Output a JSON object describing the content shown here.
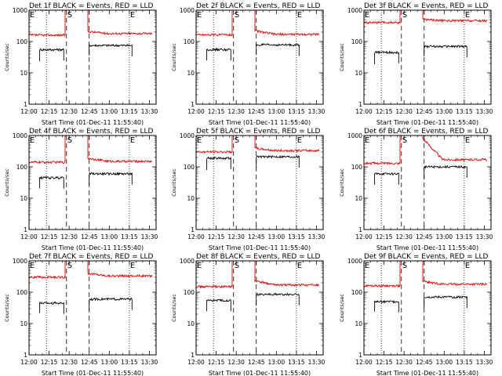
{
  "layout": {
    "rows": 3,
    "cols": 3
  },
  "colors": {
    "events": "#000000",
    "lld": "#dd0000",
    "axis": "#000000"
  },
  "chart_data": [
    {
      "type": "line",
      "title": "Det 1f BLACK = Events, RED = LLD",
      "xlabel": "Start Time (01-Dec-11 11:55:40)",
      "ylabel": "Counts/sec",
      "xlim": [
        "12:00",
        "13:35"
      ],
      "ylim": [
        1,
        1000
      ],
      "yscale": "log",
      "xticks": [
        "12:00",
        "12:15",
        "12:30",
        "12:45",
        "13:00",
        "13:15",
        "13:30"
      ],
      "yticks": [
        "1",
        "10",
        "100",
        "1000"
      ],
      "grid": false,
      "markers": [
        {
          "label": "E",
          "time": "12:00",
          "style": "dotted"
        },
        {
          "label": "",
          "time": "12:13",
          "style": "dotted"
        },
        {
          "label": "S",
          "time": "12:28",
          "style": "dashed"
        },
        {
          "label": "",
          "time": "12:45",
          "style": "dashed"
        },
        {
          "label": "E",
          "time": "13:15",
          "style": "dotted"
        }
      ],
      "series": [
        {
          "name": "LLD",
          "segments": [
            {
              "from": "12:00",
              "to": "12:27",
              "level": 160
            },
            {
              "from": "12:27",
              "to": "12:44",
              "level": 1000
            },
            {
              "from": "12:44",
              "to": "13:32",
              "level": 210,
              "decay_to": 180
            }
          ]
        },
        {
          "name": "Events",
          "segments": [
            {
              "from": "12:08",
              "to": "12:26",
              "level": 55
            },
            {
              "from": "12:45",
              "to": "13:17",
              "level": 75
            }
          ]
        }
      ]
    },
    {
      "type": "line",
      "title": "Det 2f BLACK = Events, RED = LLD",
      "xlabel": "Start Time (01-Dec-11 11:55:40)",
      "ylabel": "Counts/sec",
      "xlim": [
        "12:00",
        "13:35"
      ],
      "ylim": [
        1,
        1000
      ],
      "yscale": "log",
      "xticks": [
        "12:00",
        "12:15",
        "12:30",
        "12:45",
        "13:00",
        "13:15",
        "13:30"
      ],
      "yticks": [
        "1",
        "10",
        "100",
        "1000"
      ],
      "grid": false,
      "markers": [
        {
          "label": "E",
          "time": "12:00",
          "style": "dotted"
        },
        {
          "label": "",
          "time": "12:13",
          "style": "dotted"
        },
        {
          "label": "S",
          "time": "12:28",
          "style": "dashed"
        },
        {
          "label": "",
          "time": "12:45",
          "style": "dashed"
        },
        {
          "label": "E",
          "time": "13:15",
          "style": "dotted"
        }
      ],
      "series": [
        {
          "name": "LLD",
          "segments": [
            {
              "from": "12:00",
              "to": "12:27",
              "level": 165
            },
            {
              "from": "12:27",
              "to": "12:44",
              "level": 1000
            },
            {
              "from": "12:44",
              "to": "13:32",
              "level": 220,
              "decay_to": 170
            }
          ]
        },
        {
          "name": "Events",
          "segments": [
            {
              "from": "12:08",
              "to": "12:26",
              "level": 55
            },
            {
              "from": "12:45",
              "to": "13:17",
              "level": 78
            }
          ]
        }
      ]
    },
    {
      "type": "line",
      "title": "Det 3f BLACK = Events, RED = LLD",
      "xlabel": "Start Time (01-Dec-11 11:55:40)",
      "ylabel": "Counts/sec",
      "xlim": [
        "12:00",
        "13:35"
      ],
      "ylim": [
        1,
        1000
      ],
      "yscale": "log",
      "xticks": [
        "12:00",
        "12:15",
        "12:30",
        "12:45",
        "13:00",
        "13:15",
        "13:30"
      ],
      "yticks": [
        "1",
        "10",
        "100",
        "1000"
      ],
      "grid": false,
      "markers": [
        {
          "label": "E",
          "time": "12:00",
          "style": "dotted"
        },
        {
          "label": "",
          "time": "12:13",
          "style": "dotted"
        },
        {
          "label": "S",
          "time": "12:28",
          "style": "dashed"
        },
        {
          "label": "",
          "time": "12:45",
          "style": "dashed"
        },
        {
          "label": "E",
          "time": "13:15",
          "style": "dotted"
        }
      ],
      "series": [
        {
          "name": "LLD",
          "segments": [
            {
              "from": "12:00",
              "to": "12:27",
              "level": 400
            },
            {
              "from": "12:27",
              "to": "12:44",
              "level": 1000
            },
            {
              "from": "12:44",
              "to": "13:32",
              "level": 520,
              "decay_to": 460
            }
          ]
        },
        {
          "name": "Events",
          "segments": [
            {
              "from": "12:08",
              "to": "12:26",
              "level": 45
            },
            {
              "from": "12:45",
              "to": "13:17",
              "level": 70
            }
          ]
        }
      ]
    },
    {
      "type": "line",
      "title": "Det 4f BLACK = Events, RED = LLD",
      "xlabel": "Start Time (01-Dec-11 11:55:40)",
      "ylabel": "Counts/sec",
      "xlim": [
        "12:00",
        "13:35"
      ],
      "ylim": [
        1,
        1000
      ],
      "yscale": "log",
      "xticks": [
        "12:00",
        "12:15",
        "12:30",
        "12:45",
        "13:00",
        "13:15",
        "13:30"
      ],
      "yticks": [
        "1",
        "10",
        "100",
        "1000"
      ],
      "grid": false,
      "markers": [
        {
          "label": "E",
          "time": "12:00",
          "style": "dotted"
        },
        {
          "label": "",
          "time": "12:13",
          "style": "dotted"
        },
        {
          "label": "S",
          "time": "12:28",
          "style": "dashed"
        },
        {
          "label": "",
          "time": "12:45",
          "style": "dashed"
        },
        {
          "label": "E",
          "time": "13:15",
          "style": "dotted"
        }
      ],
      "series": [
        {
          "name": "LLD",
          "segments": [
            {
              "from": "12:00",
              "to": "12:27",
              "level": 140
            },
            {
              "from": "12:27",
              "to": "12:44",
              "level": 1000
            },
            {
              "from": "12:44",
              "to": "13:32",
              "level": 190,
              "decay_to": 150
            }
          ]
        },
        {
          "name": "Events",
          "segments": [
            {
              "from": "12:08",
              "to": "12:26",
              "level": 45
            },
            {
              "from": "12:45",
              "to": "13:17",
              "level": 60
            }
          ]
        }
      ]
    },
    {
      "type": "line",
      "title": "Det 5f BLACK = Events, RED = LLD",
      "xlabel": "Start Time (01-Dec-11 11:55:40)",
      "ylabel": "Counts/sec",
      "xlim": [
        "12:00",
        "13:35"
      ],
      "ylim": [
        1,
        1000
      ],
      "yscale": "log",
      "xticks": [
        "12:00",
        "12:15",
        "12:30",
        "12:45",
        "13:00",
        "13:15",
        "13:30"
      ],
      "yticks": [
        "1",
        "10",
        "100",
        "1000"
      ],
      "grid": false,
      "markers": [
        {
          "label": "E",
          "time": "12:00",
          "style": "dotted"
        },
        {
          "label": "",
          "time": "12:13",
          "style": "dotted"
        },
        {
          "label": "S",
          "time": "12:28",
          "style": "dashed"
        },
        {
          "label": "",
          "time": "12:45",
          "style": "dashed"
        },
        {
          "label": "E",
          "time": "13:15",
          "style": "dotted"
        }
      ],
      "series": [
        {
          "name": "LLD",
          "segments": [
            {
              "from": "12:00",
              "to": "12:27",
              "level": 300
            },
            {
              "from": "12:27",
              "to": "12:44",
              "level": 1000
            },
            {
              "from": "12:44",
              "to": "13:32",
              "level": 390,
              "decay_to": 330
            }
          ]
        },
        {
          "name": "Events",
          "segments": [
            {
              "from": "12:08",
              "to": "12:26",
              "level": 190
            },
            {
              "from": "12:45",
              "to": "13:17",
              "level": 210
            }
          ]
        }
      ]
    },
    {
      "type": "line",
      "title": "Det 6f BLACK = Events, RED = LLD",
      "xlabel": "Start Time (01-Dec-11 11:55:40)",
      "ylabel": "Counts/sec",
      "xlim": [
        "12:00",
        "13:35"
      ],
      "ylim": [
        1,
        1000
      ],
      "yscale": "log",
      "xticks": [
        "12:00",
        "12:15",
        "12:30",
        "12:45",
        "13:00",
        "13:15",
        "13:30"
      ],
      "yticks": [
        "1",
        "10",
        "100",
        "1000"
      ],
      "grid": false,
      "markers": [
        {
          "label": "E",
          "time": "12:00",
          "style": "dotted"
        },
        {
          "label": "",
          "time": "12:13",
          "style": "dotted"
        },
        {
          "label": "S",
          "time": "12:28",
          "style": "dashed"
        },
        {
          "label": "",
          "time": "12:45",
          "style": "dashed"
        },
        {
          "label": "E",
          "time": "13:15",
          "style": "dotted"
        }
      ],
      "series": [
        {
          "name": "LLD",
          "segments": [
            {
              "from": "12:00",
              "to": "12:27",
              "level": 130
            },
            {
              "from": "12:27",
              "to": "12:44",
              "level": 1000
            },
            {
              "from": "12:44",
              "to": "13:32",
              "level": 800,
              "decay_to": 170
            }
          ]
        },
        {
          "name": "Events",
          "segments": [
            {
              "from": "12:08",
              "to": "12:26",
              "level": 60
            },
            {
              "from": "12:45",
              "to": "13:17",
              "level": 100
            }
          ]
        }
      ]
    },
    {
      "type": "line",
      "title": "Det 7f BLACK = Events, RED = LLD",
      "xlabel": "Start Time (01-Dec-11 11:55:40)",
      "ylabel": "Counts/sec",
      "xlim": [
        "12:00",
        "13:35"
      ],
      "ylim": [
        1,
        1000
      ],
      "yscale": "log",
      "xticks": [
        "12:00",
        "12:15",
        "12:30",
        "12:45",
        "13:00",
        "13:15",
        "13:30"
      ],
      "yticks": [
        "1",
        "10",
        "100",
        "1000"
      ],
      "grid": false,
      "markers": [
        {
          "label": "E",
          "time": "12:00",
          "style": "dotted"
        },
        {
          "label": "",
          "time": "12:13",
          "style": "dotted"
        },
        {
          "label": "S",
          "time": "12:28",
          "style": "dashed"
        },
        {
          "label": "",
          "time": "12:45",
          "style": "dashed"
        },
        {
          "label": "E",
          "time": "13:15",
          "style": "dotted"
        }
      ],
      "series": [
        {
          "name": "LLD",
          "segments": [
            {
              "from": "12:00",
              "to": "12:27",
              "level": 300
            },
            {
              "from": "12:27",
              "to": "12:44",
              "level": 1000
            },
            {
              "from": "12:44",
              "to": "13:32",
              "level": 400,
              "decay_to": 330
            }
          ]
        },
        {
          "name": "Events",
          "segments": [
            {
              "from": "12:08",
              "to": "12:26",
              "level": 45
            },
            {
              "from": "12:45",
              "to": "13:17",
              "level": 60
            }
          ]
        }
      ]
    },
    {
      "type": "line",
      "title": "Det 8f BLACK = Events, RED = LLD",
      "xlabel": "Start Time (01-Dec-11 11:55:40)",
      "ylabel": "Counts/sec",
      "xlim": [
        "12:00",
        "13:35"
      ],
      "ylim": [
        1,
        1000
      ],
      "yscale": "log",
      "xticks": [
        "12:00",
        "12:15",
        "12:30",
        "12:45",
        "13:00",
        "13:15",
        "13:30"
      ],
      "yticks": [
        "1",
        "10",
        "100",
        "1000"
      ],
      "grid": false,
      "markers": [
        {
          "label": "E",
          "time": "12:00",
          "style": "dotted"
        },
        {
          "label": "",
          "time": "12:13",
          "style": "dotted"
        },
        {
          "label": "S",
          "time": "12:28",
          "style": "dashed"
        },
        {
          "label": "",
          "time": "12:45",
          "style": "dashed"
        },
        {
          "label": "E",
          "time": "13:15",
          "style": "dotted"
        }
      ],
      "series": [
        {
          "name": "LLD",
          "segments": [
            {
              "from": "12:00",
              "to": "12:27",
              "level": 150
            },
            {
              "from": "12:27",
              "to": "12:44",
              "level": 1000
            },
            {
              "from": "12:44",
              "to": "13:32",
              "level": 230,
              "decay_to": 170
            }
          ]
        },
        {
          "name": "Events",
          "segments": [
            {
              "from": "12:08",
              "to": "12:26",
              "level": 55
            },
            {
              "from": "12:45",
              "to": "13:17",
              "level": 85
            }
          ]
        }
      ]
    },
    {
      "type": "line",
      "title": "Det 9f BLACK = Events, RED = LLD",
      "xlabel": "Start Time (01-Dec-11 11:55:40)",
      "ylabel": "Counts/sec",
      "xlim": [
        "12:00",
        "13:35"
      ],
      "ylim": [
        1,
        1000
      ],
      "yscale": "log",
      "xticks": [
        "12:00",
        "12:15",
        "12:30",
        "12:45",
        "13:00",
        "13:15",
        "13:30"
      ],
      "yticks": [
        "1",
        "10",
        "100",
        "1000"
      ],
      "grid": false,
      "markers": [
        {
          "label": "E",
          "time": "12:00",
          "style": "dotted"
        },
        {
          "label": "",
          "time": "12:13",
          "style": "dotted"
        },
        {
          "label": "S",
          "time": "12:28",
          "style": "dashed"
        },
        {
          "label": "",
          "time": "12:45",
          "style": "dashed"
        },
        {
          "label": "E",
          "time": "13:15",
          "style": "dotted"
        }
      ],
      "series": [
        {
          "name": "LLD",
          "segments": [
            {
              "from": "12:00",
              "to": "12:27",
              "level": 160
            },
            {
              "from": "12:27",
              "to": "12:44",
              "level": 1000
            },
            {
              "from": "12:44",
              "to": "13:32",
              "level": 220,
              "decay_to": 180
            }
          ]
        },
        {
          "name": "Events",
          "segments": [
            {
              "from": "12:08",
              "to": "12:26",
              "level": 50
            },
            {
              "from": "12:45",
              "to": "13:17",
              "level": 70
            }
          ]
        }
      ]
    }
  ]
}
